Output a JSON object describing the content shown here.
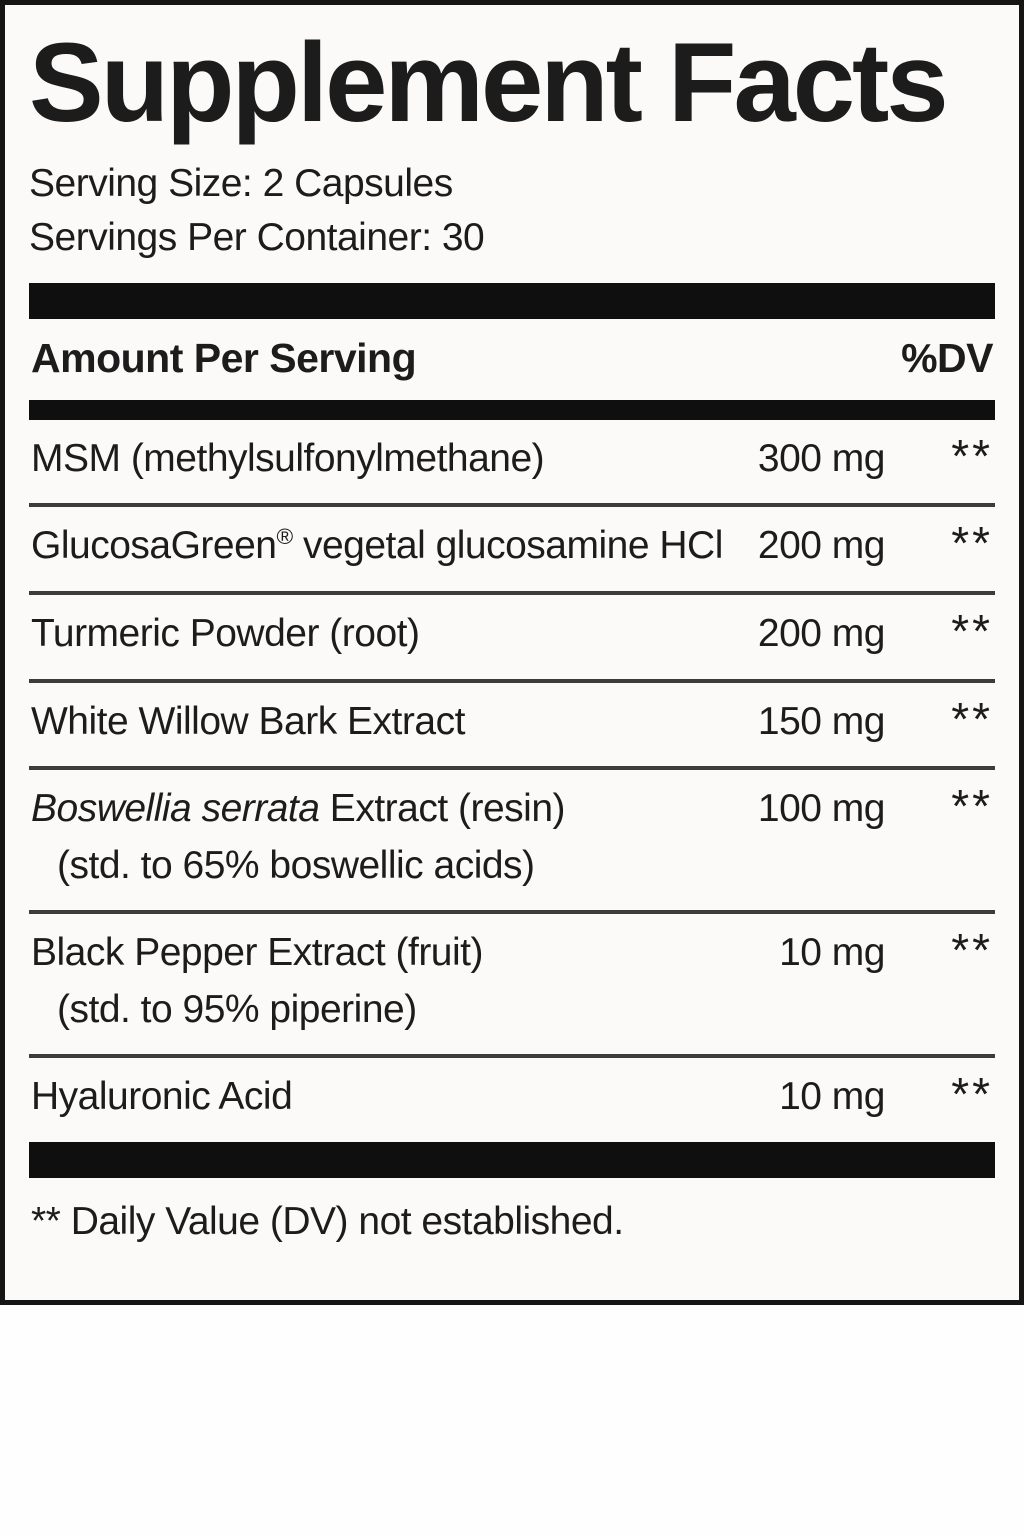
{
  "label": {
    "title": "Supplement Facts",
    "serving_size": "Serving Size: 2 Capsules",
    "servings_per_container": "Servings Per Container: 30",
    "columns": {
      "amount": "Amount Per Serving",
      "dv": "%DV"
    },
    "rows": [
      {
        "name": "MSM (methylsulfonylmethane)",
        "amount": "300 mg",
        "dv": "**"
      },
      {
        "name": "GlucosaGreen",
        "sup": "®",
        "name2": " vegetal glucosamine HCl",
        "amount": "200 mg",
        "dv": "**"
      },
      {
        "name": "Turmeric Powder (root)",
        "amount": "200 mg",
        "dv": "**"
      },
      {
        "name": "White Willow Bark Extract",
        "amount": "150 mg",
        "dv": "**"
      },
      {
        "name_italic": "Boswellia serrata",
        "name2": " Extract (resin)",
        "sub": "(std. to 65% boswellic acids)",
        "amount": "100 mg",
        "dv": "**"
      },
      {
        "name": "Black Pepper Extract (fruit)",
        "sub": "(std. to 95% piperine)",
        "amount": "10 mg",
        "dv": "**"
      },
      {
        "name": "Hyaluronic Acid",
        "amount": "10 mg",
        "dv": "**"
      }
    ],
    "footnote": "** Daily Value (DV) not established.",
    "colors": {
      "bar": "#0f0f0f",
      "separator": "#3c3c3c",
      "background": "#fbfaf8",
      "text": "#1c1c1c"
    }
  }
}
